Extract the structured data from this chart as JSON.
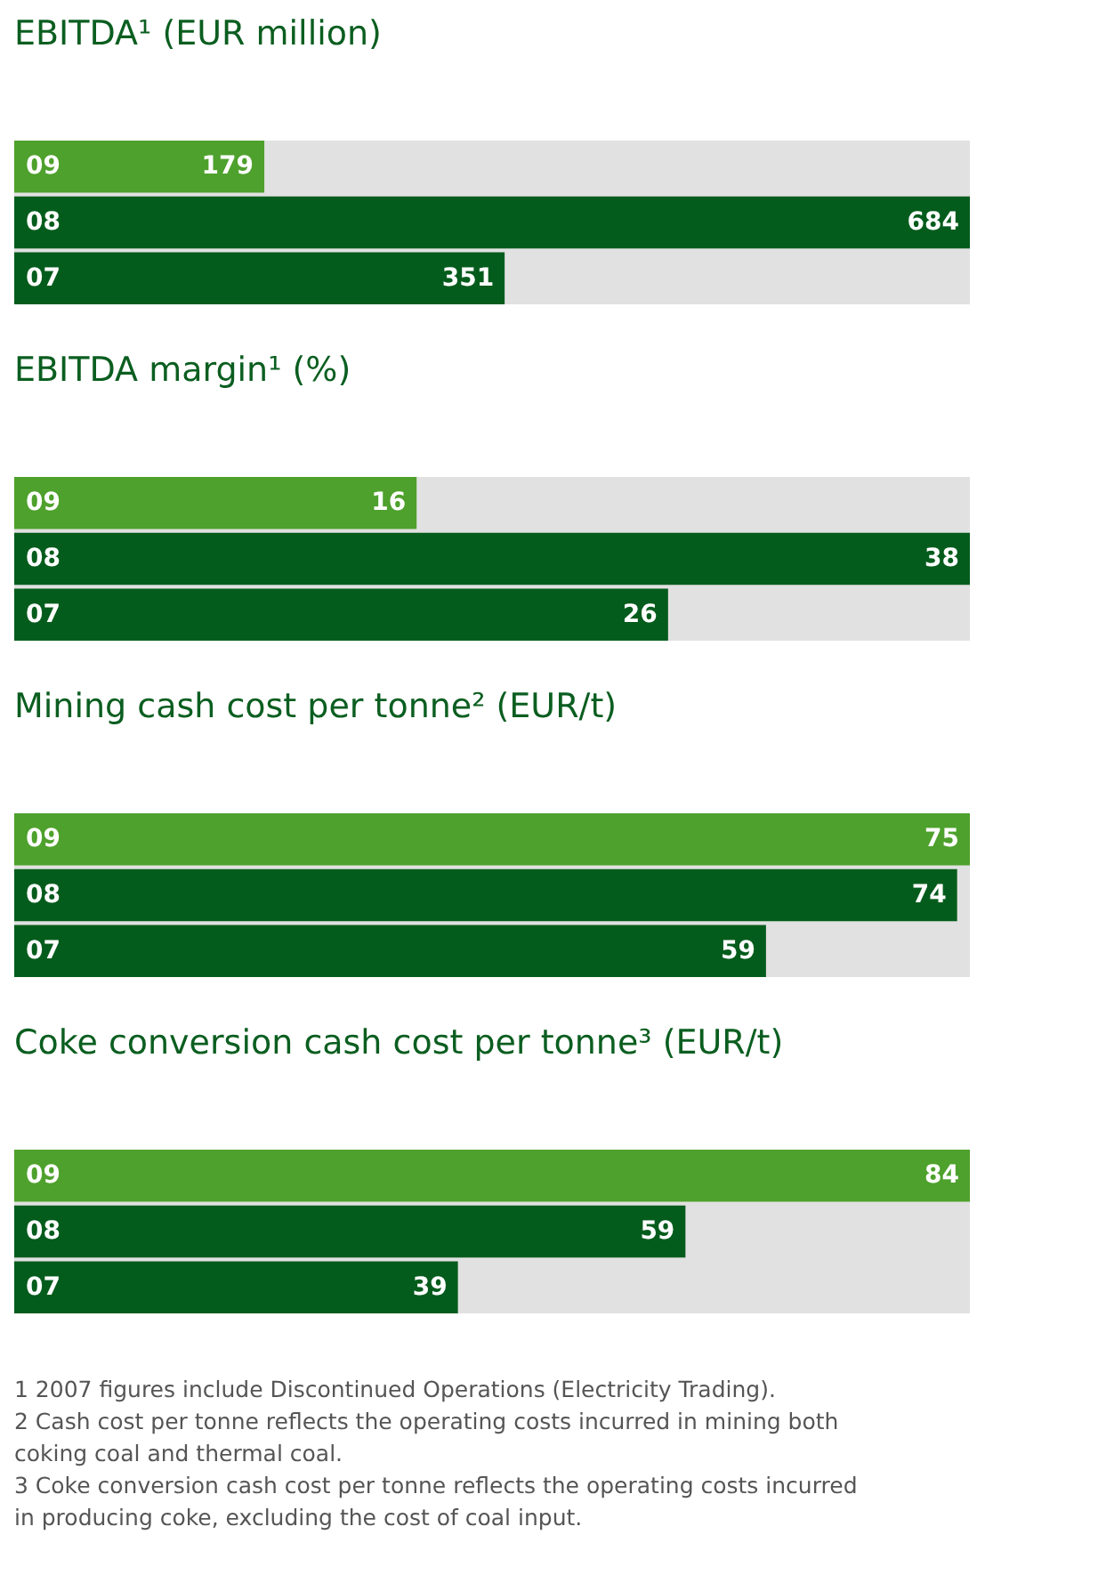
{
  "chart_data": [
    {
      "type": "bar",
      "orientation": "horizontal",
      "title": "EBITDA¹ (EUR million)",
      "categories": [
        "09",
        "08",
        "07"
      ],
      "values": [
        179,
        684,
        351
      ],
      "colors": [
        "#4ea12c",
        "#045c1c",
        "#045c1c"
      ],
      "xlim": [
        0,
        684
      ],
      "data_labels": true,
      "tick_labels": "y",
      "bands": [
        {
          "axis": "x",
          "from": 0,
          "to": 684,
          "color": "#e1e1e1"
        }
      ]
    },
    {
      "type": "bar",
      "orientation": "horizontal",
      "title": "EBITDA margin¹ (%)",
      "categories": [
        "09",
        "08",
        "07"
      ],
      "values": [
        16,
        38,
        26
      ],
      "colors": [
        "#4ea12c",
        "#045c1c",
        "#045c1c"
      ],
      "xlim": [
        0,
        38
      ],
      "data_labels": true,
      "tick_labels": "y",
      "bands": [
        {
          "axis": "x",
          "from": 0,
          "to": 38,
          "color": "#e1e1e1"
        }
      ]
    },
    {
      "type": "bar",
      "orientation": "horizontal",
      "title": "Mining cash cost per tonne² (EUR/t)",
      "categories": [
        "09",
        "08",
        "07"
      ],
      "values": [
        75,
        74,
        59
      ],
      "colors": [
        "#4ea12c",
        "#045c1c",
        "#045c1c"
      ],
      "xlim": [
        0,
        75
      ],
      "data_labels": true,
      "tick_labels": "y",
      "bands": [
        {
          "axis": "x",
          "from": 0,
          "to": 75,
          "color": "#e1e1e1"
        }
      ]
    },
    {
      "type": "bar",
      "orientation": "horizontal",
      "title": "Coke conversion cash cost per tonne³ (EUR/t)",
      "categories": [
        "09",
        "08",
        "07"
      ],
      "values": [
        84,
        59,
        39
      ],
      "colors": [
        "#4ea12c",
        "#045c1c",
        "#045c1c"
      ],
      "xlim": [
        0,
        84
      ],
      "data_labels": true,
      "tick_labels": "y",
      "bands": [
        {
          "axis": "x",
          "from": 0,
          "to": 84,
          "color": "#e1e1e1"
        }
      ]
    },
    {
      "type": "other",
      "annotations": [
        "1      2007 figures include Discontinued Operations (Electricity Trading).",
        "2      Cash cost per tonne reflects the operating costs incurred in mining both coking coal and thermal coal.",
        "3      Coke conversion cash cost per tonne reflects the operating costs incurred in producing coke, excluding the cost of coal input."
      ]
    }
  ]
}
